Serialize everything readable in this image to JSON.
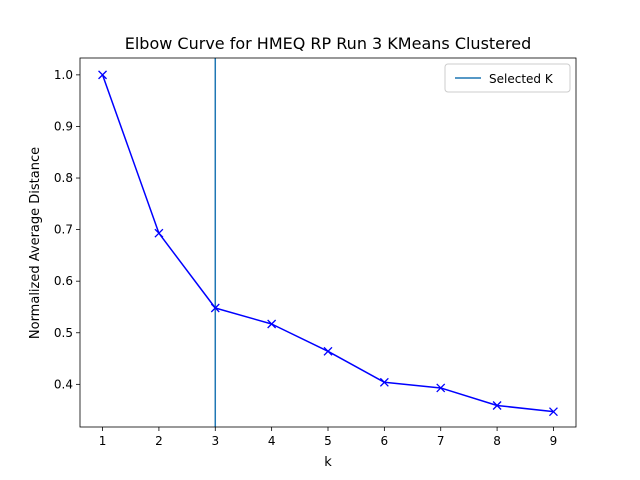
{
  "chart_data": {
    "type": "line",
    "title": "Elbow Curve for HMEQ RP Run 3 KMeans Clustered",
    "xlabel": "k",
    "ylabel": "Normalized Average Distance",
    "x": [
      1,
      2,
      3,
      4,
      5,
      6,
      7,
      8,
      9
    ],
    "series": [
      {
        "values": [
          1.0,
          0.693,
          0.548,
          0.517,
          0.464,
          0.404,
          0.393,
          0.359,
          0.347
        ],
        "color": "#0000ff",
        "marker": "x"
      }
    ],
    "xlim": [
      0.6,
      9.4
    ],
    "ylim": [
      0.3173,
      1.0327
    ],
    "xticks": [
      1,
      2,
      3,
      4,
      5,
      6,
      7,
      8,
      9
    ],
    "yticks": [
      0.4,
      0.5,
      0.6,
      0.7,
      0.8,
      0.9,
      1.0
    ],
    "ytick_labels": [
      "0.4",
      "0.5",
      "0.6",
      "0.7",
      "0.8",
      "0.9",
      "1.0"
    ],
    "vline": {
      "x": 3,
      "label": "Selected K",
      "color": "#1f77b4"
    },
    "legend": {
      "placement": "top-right",
      "entries": [
        "Selected K"
      ]
    },
    "grid": false
  }
}
